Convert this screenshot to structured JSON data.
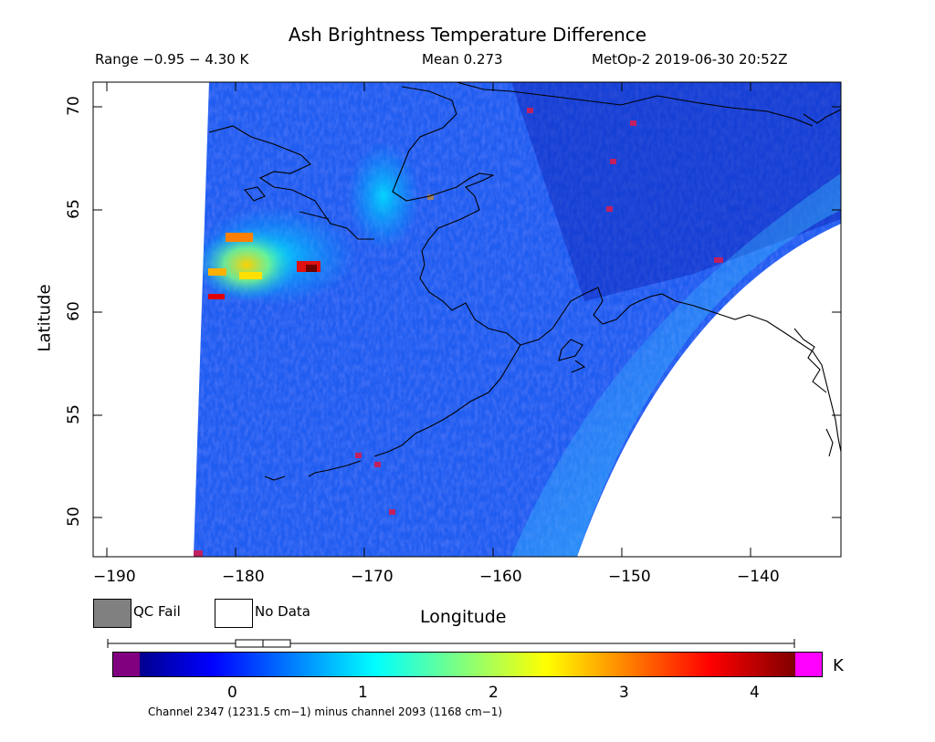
{
  "header": {
    "title": "Ash Brightness Temperature Difference",
    "range": "Range −0.95 − 4.30 K",
    "mean": "Mean 0.273",
    "satellite": "MetOp-2 2019-06-30 20:52Z"
  },
  "axes": {
    "xlabel": "Longitude",
    "ylabel": "Latitude",
    "xticks": [
      "−190",
      "−180",
      "−170",
      "−160",
      "−150",
      "−140"
    ],
    "yticks": [
      "50",
      "55",
      "60",
      "65",
      "70"
    ]
  },
  "legend": {
    "qc_fail": "QC Fail",
    "no_data": "No Data",
    "qc_fail_color": "#808080",
    "no_data_color": "#ffffff"
  },
  "colorbar": {
    "unit": "K",
    "ticks": [
      "0",
      "1",
      "2",
      "3",
      "4"
    ],
    "under_color": "#800080",
    "over_color": "#ff00ff",
    "range": [
      -0.95,
      4.3
    ],
    "boxplot_note": "box spans approximately 0.0 to 0.4 K, median ~0.27"
  },
  "footnote": "Channel 2347 (1231.5 cm−1) minus channel 2093 (1168 cm−1)"
}
